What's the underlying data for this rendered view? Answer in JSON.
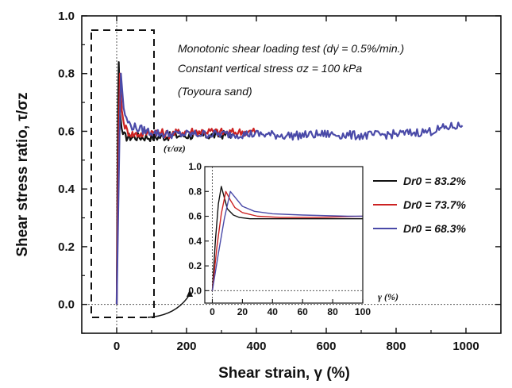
{
  "chart_data": {
    "type": "line",
    "xlabel": "Shear strain, γ (%)",
    "ylabel": "Shear stress ratio, τ/σz",
    "xlim": [
      -100,
      1100
    ],
    "ylim": [
      -0.1,
      1.0
    ],
    "xticks": [
      "0",
      "200",
      "400",
      "600",
      "800",
      "1000"
    ],
    "yticks": [
      "0.0",
      "0.2",
      "0.4",
      "0.6",
      "0.8",
      "1.0"
    ],
    "annotations": [
      "Monotonic shear loading test  (dγ̇ = 0.5%/min.)",
      "Constant vertical stress σz = 100 kPa",
      "(Toyoura sand)"
    ],
    "series": [
      {
        "name": "Dr0 = 83.2%",
        "color": "#111111",
        "x": [
          0,
          2,
          4,
          6,
          8,
          10,
          14,
          18,
          25,
          35,
          50,
          80,
          120,
          180,
          260,
          330
        ],
        "y": [
          0,
          0.4,
          0.7,
          0.84,
          0.75,
          0.66,
          0.61,
          0.59,
          0.58,
          0.58,
          0.58,
          0.58,
          0.58,
          0.585,
          0.585,
          0.59
        ]
      },
      {
        "name": "Dr0 = 73.7%",
        "color": "#cc2222",
        "x": [
          0,
          3,
          6,
          9,
          12,
          15,
          20,
          30,
          45,
          70,
          100,
          150,
          200,
          260,
          320,
          400
        ],
        "y": [
          0,
          0.35,
          0.62,
          0.8,
          0.73,
          0.67,
          0.63,
          0.6,
          0.59,
          0.59,
          0.6,
          0.59,
          0.6,
          0.6,
          0.595,
          0.6
        ]
      },
      {
        "name": "Dr0 = 68.3%",
        "color": "#4a4aa8",
        "x": [
          0,
          4,
          8,
          12,
          16,
          20,
          28,
          40,
          60,
          90,
          130,
          200,
          300,
          400,
          500,
          600,
          700,
          800,
          900,
          950,
          990
        ],
        "y": [
          0,
          0.3,
          0.58,
          0.8,
          0.74,
          0.68,
          0.64,
          0.62,
          0.61,
          0.6,
          0.59,
          0.59,
          0.59,
          0.59,
          0.585,
          0.59,
          0.585,
          0.59,
          0.6,
          0.615,
          0.62
        ]
      }
    ],
    "inset": {
      "xlabel": "γ (%)",
      "ylabel": "(τ/σz)",
      "xlim": [
        -5,
        100
      ],
      "ylim": [
        -0.1,
        1.0
      ],
      "xticks": [
        "0",
        "20",
        "40",
        "60",
        "80",
        "100"
      ],
      "yticks": [
        "0.0",
        "0.2",
        "0.4",
        "0.6",
        "0.8",
        "1.0"
      ]
    },
    "legend_position": "right of inset"
  }
}
